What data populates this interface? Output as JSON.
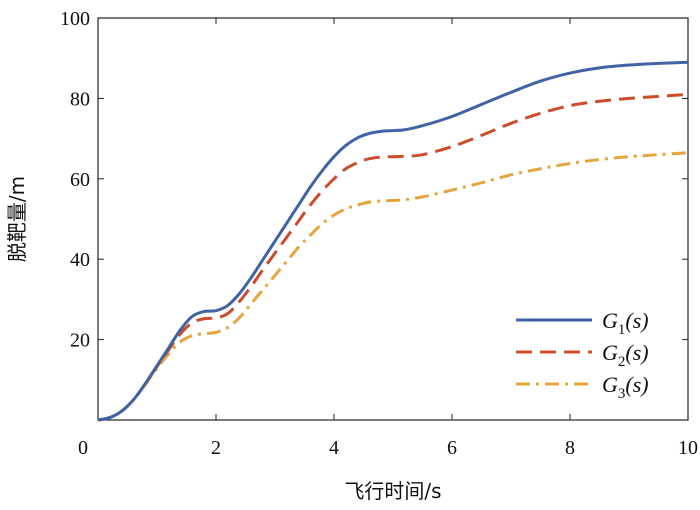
{
  "chart_data": {
    "type": "line",
    "xlabel": "飞行时间/s",
    "ylabel": "脱靶量/m",
    "xlim": [
      0,
      10
    ],
    "ylim": [
      0,
      100
    ],
    "xticks": [
      0,
      2,
      4,
      6,
      8,
      10
    ],
    "yticks": [
      20,
      40,
      60,
      80,
      100
    ],
    "x_origin_label": "0",
    "grid": false,
    "legend_position": "bottom-right",
    "series": [
      {
        "legend_main": "G",
        "legend_sub": "1",
        "legend_tail": "(s)",
        "color": "#3f63a6",
        "dash": "solid",
        "x": [
          0,
          0.2,
          0.4,
          0.6,
          0.8,
          1.0,
          1.2,
          1.4,
          1.6,
          1.8,
          2.0,
          2.2,
          2.4,
          2.6,
          2.8,
          3.0,
          3.2,
          3.4,
          3.6,
          3.8,
          4.0,
          4.2,
          4.4,
          4.6,
          4.8,
          5.0,
          5.2,
          5.5,
          6.0,
          6.5,
          7.0,
          7.5,
          8.0,
          8.5,
          9.0,
          9.5,
          10.0
        ],
        "y": [
          0,
          0.6,
          2.2,
          5.0,
          9.0,
          13.5,
          18.0,
          22.5,
          25.8,
          27.0,
          27.2,
          28.5,
          31.5,
          35.5,
          40.0,
          44.5,
          49.0,
          53.5,
          58.0,
          62.0,
          65.5,
          68.3,
          70.2,
          71.3,
          71.8,
          72.0,
          72.2,
          73.2,
          75.5,
          78.5,
          81.5,
          84.3,
          86.3,
          87.6,
          88.3,
          88.7,
          89.0
        ]
      },
      {
        "legend_main": "G",
        "legend_sub": "2",
        "legend_tail": "(s)",
        "color": "#cc4b2b",
        "dash": "dashed",
        "x": [
          0,
          0.2,
          0.4,
          0.6,
          0.8,
          1.0,
          1.2,
          1.4,
          1.6,
          1.8,
          2.0,
          2.2,
          2.4,
          2.6,
          2.8,
          3.0,
          3.2,
          3.4,
          3.6,
          3.8,
          4.0,
          4.2,
          4.4,
          4.6,
          4.8,
          5.0,
          5.2,
          5.5,
          6.0,
          6.5,
          7.0,
          7.5,
          8.0,
          8.5,
          9.0,
          9.5,
          10.0
        ],
        "y": [
          0,
          0.6,
          2.2,
          5.0,
          9.0,
          13.3,
          17.5,
          21.5,
          24.2,
          25.2,
          25.4,
          26.5,
          29.5,
          33.3,
          37.5,
          41.5,
          45.5,
          49.5,
          53.5,
          57.0,
          60.0,
          62.5,
          64.0,
          65.0,
          65.4,
          65.5,
          65.6,
          66.0,
          68.0,
          70.8,
          73.8,
          76.3,
          78.2,
          79.3,
          80.0,
          80.5,
          81.0
        ]
      },
      {
        "legend_main": "G",
        "legend_sub": "3",
        "legend_tail": "(s)",
        "color": "#e6a43c",
        "dash": "dashdot",
        "x": [
          0,
          0.2,
          0.4,
          0.6,
          0.8,
          1.0,
          1.2,
          1.4,
          1.6,
          1.8,
          2.0,
          2.2,
          2.4,
          2.6,
          2.8,
          3.0,
          3.2,
          3.4,
          3.6,
          3.8,
          4.0,
          4.2,
          4.4,
          4.6,
          4.8,
          5.0,
          5.2,
          5.5,
          6.0,
          6.5,
          7.0,
          7.5,
          8.0,
          8.5,
          9.0,
          9.5,
          10.0
        ],
        "y": [
          0,
          0.6,
          2.2,
          5.0,
          8.8,
          12.8,
          16.5,
          19.5,
          21.0,
          21.5,
          21.8,
          23.0,
          25.5,
          29.0,
          32.5,
          36.0,
          39.5,
          43.0,
          46.0,
          48.8,
          51.0,
          52.5,
          53.5,
          54.2,
          54.5,
          54.6,
          54.8,
          55.5,
          57.2,
          59.0,
          61.0,
          62.5,
          63.8,
          64.8,
          65.5,
          66.0,
          66.5
        ]
      }
    ]
  }
}
